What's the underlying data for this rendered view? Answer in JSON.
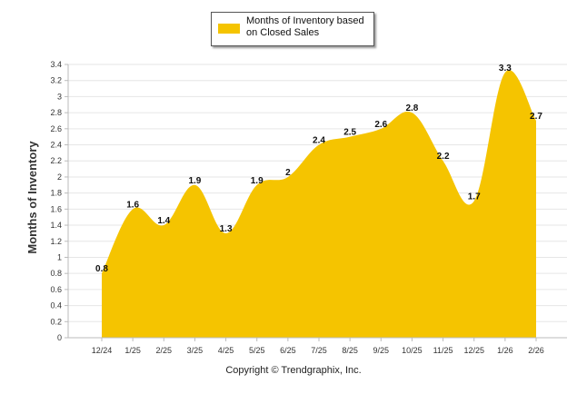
{
  "chart_data": {
    "type": "area",
    "title": "",
    "xlabel": "",
    "ylabel": "Months of Inventory",
    "ylim": [
      0,
      3.4
    ],
    "yticks": [
      0,
      0.2,
      0.4,
      0.6,
      0.8,
      1,
      1.2,
      1.4,
      1.6,
      1.8,
      2,
      2.2,
      2.4,
      2.6,
      2.8,
      3,
      3.2,
      3.4
    ],
    "categories": [
      "12/24",
      "1/25",
      "2/25",
      "3/25",
      "4/25",
      "5/25",
      "6/25",
      "7/25",
      "8/25",
      "9/25",
      "10/25",
      "11/25",
      "12/25",
      "1/26",
      "2/26"
    ],
    "series": [
      {
        "name": "Months of Inventory based on Closed Sales",
        "color": "#F5C400",
        "values": [
          0.8,
          1.6,
          1.4,
          1.9,
          1.3,
          1.9,
          2,
          2.4,
          2.5,
          2.6,
          2.8,
          2.2,
          1.7,
          3.3,
          2.7
        ]
      }
    ],
    "grid": true,
    "legend": "top-center"
  },
  "legend": {
    "label": "Months of Inventory based on Closed Sales"
  },
  "footer": {
    "copyright": "Copyright © Trendgraphix, Inc."
  }
}
